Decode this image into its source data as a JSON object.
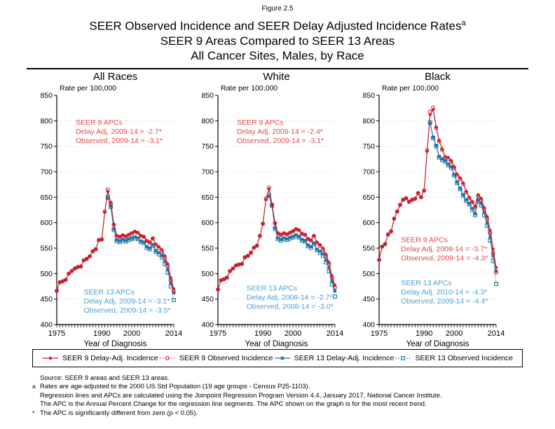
{
  "figure_label": "Figure 2.5",
  "title_line1": "SEER Observed Incidence and SEER Delay Adjusted Incidence Rates",
  "title_superscript": "a",
  "title_line2": "SEER 9 Areas Compared to SEER 13 Areas",
  "title_line3": "All Cancer Sites, Males, by Race",
  "colors": {
    "seer9": "#c8202e",
    "seer9_text": "#e04a4a",
    "seer13": "#2278a8",
    "seer13_text": "#4e9fd4",
    "grid": "#dedede",
    "axis": "#000000"
  },
  "legend": [
    {
      "label": "SEER 9 Delay-Adj. Incidence",
      "marker": "filled-circle",
      "color": "#c8202e",
      "icon": "seer9-delay-adj-marker-icon"
    },
    {
      "label": "SEER 9 Observed Incidence",
      "marker": "open-circle",
      "color": "#c8202e",
      "icon": "seer9-observed-marker-icon"
    },
    {
      "label": "SEER 13 Delay-Adj. Incidence",
      "marker": "filled-square",
      "color": "#2278a8",
      "icon": "seer13-delay-adj-marker-icon"
    },
    {
      "label": "SEER 13 Observed Incidence",
      "marker": "open-square",
      "color": "#2278a8",
      "icon": "seer13-observed-marker-icon"
    }
  ],
  "footnotes": [
    {
      "marker": "",
      "text": "Source: SEER 9 areas and SEER 13 areas."
    },
    {
      "marker": "a",
      "text": "Rates are age-adjusted to the 2000 US Std Population (19 age groups - Census P25-1103)."
    },
    {
      "marker": "",
      "text": "Regression lines and APCs are calculated using the Joinpoint Regression Program Version 4.4, January 2017, National Cancer Institute."
    },
    {
      "marker": "",
      "text": "The APC is the Annual Percent Change for the regression line segments. The APC shown on the graph is for the most recent trend."
    },
    {
      "marker": "*",
      "text": "The APC is significantly different from zero (p < 0.05)."
    }
  ],
  "chart_data": {
    "type": "line",
    "ylabel": "Rate per 100,000",
    "xlabel": "Year of Diagnosis",
    "ylim": [
      400,
      850
    ],
    "xlim": [
      1975,
      2014
    ],
    "yticks": [
      400,
      450,
      500,
      550,
      600,
      650,
      700,
      750,
      800,
      850
    ],
    "xticks": [
      1975,
      1990,
      2000,
      2014
    ],
    "grid": "dashed-horizontal",
    "panels": [
      {
        "title": "All Races",
        "annotations": [
          {
            "color_key": "seer9_text",
            "x_year": 1981.3,
            "top_rate": 792,
            "lines": [
              "SEER 9 APCs",
              "Delay Adj, 2009-14 = -2.7*",
              "Observed, 2009-14 = -3.1*"
            ]
          },
          {
            "color_key": "seer13_text",
            "x_year": 1984.0,
            "top_rate": 459,
            "lines": [
              "SEER 13 APCs",
              "Delay Adj, 2009-14 = -3.1*",
              "Observed, 2009-14 = -3.5*"
            ]
          }
        ],
        "series": [
          {
            "key": "s13o",
            "name": "SEER 13 Observed Incidence",
            "start_year": 1992,
            "values": [
              650,
              631,
              586,
              564,
              562,
              565,
              563,
              566,
              568,
              570,
              568,
              562,
              560,
              551,
              548,
              555,
              543,
              538,
              532,
              519,
              502,
              475,
              448
            ]
          },
          {
            "key": "s13d",
            "name": "SEER 13 Delay-Adj. Incidence",
            "start_year": 1992,
            "values": [
              648,
              633,
              588,
              566,
              564,
              567,
              565,
              568,
              570,
              572,
              570,
              564,
              562,
              553,
              550,
              557,
              545,
              541,
              536,
              524,
              508,
              482,
              462
            ]
          },
          {
            "key": "s9o",
            "name": "SEER 9 Observed Incidence",
            "start_year": 1975,
            "values": [
              466,
              483,
              485,
              488,
              500,
              505,
              510,
              513,
              514,
              526,
              529,
              534,
              544,
              548,
              566,
              567,
              622,
              665,
              638,
              596,
              574,
              572,
              575,
              573,
              576,
              579,
              582,
              580,
              574,
              572,
              564,
              561,
              569,
              556,
              551,
              544,
              532,
              515,
              487,
              465
            ]
          },
          {
            "key": "s9d",
            "name": "SEER 9 Delay-Adj. Incidence",
            "start_year": 1975,
            "values": [
              466,
              483,
              485,
              488,
              500,
              505,
              510,
              513,
              514,
              526,
              529,
              534,
              544,
              548,
              566,
              567,
              620,
              661,
              640,
              597,
              575,
              573,
              576,
              574,
              577,
              580,
              583,
              581,
              575,
              573,
              565,
              562,
              570,
              558,
              553,
              547,
              535,
              519,
              492,
              470
            ]
          }
        ]
      },
      {
        "title": "White",
        "annotations": [
          {
            "color_key": "seer9_text",
            "x_year": 1981.3,
            "top_rate": 792,
            "lines": [
              "SEER 9 APCs",
              "Delay Adj, 2008-14 = -2.4*",
              "Observed, 2009-14 = -3.1*"
            ]
          },
          {
            "color_key": "seer13_text",
            "x_year": 1984.5,
            "top_rate": 467,
            "lines": [
              "SEER 13 APCs",
              "Delay Adj, 2008-14 = -2.7*",
              "Observed, 2008-14 = -3.0*"
            ]
          }
        ],
        "series": [
          {
            "key": "s13o",
            "name": "SEER 13 Observed Incidence",
            "start_year": 1992,
            "values": [
              654,
              633,
              588,
              568,
              565,
              568,
              566,
              569,
              571,
              574,
              571,
              565,
              563,
              554,
              551,
              558,
              546,
              541,
              535,
              522,
              505,
              479,
              455
            ]
          },
          {
            "key": "s13d",
            "name": "SEER 13 Delay-Adj. Incidence",
            "start_year": 1992,
            "values": [
              652,
              635,
              590,
              570,
              567,
              570,
              568,
              571,
              573,
              576,
              573,
              567,
              565,
              556,
              553,
              560,
              548,
              544,
              539,
              527,
              511,
              486,
              466
            ]
          },
          {
            "key": "s9o",
            "name": "SEER 9 Observed Incidence",
            "start_year": 1975,
            "values": [
              469,
              487,
              489,
              492,
              505,
              510,
              516,
              518,
              519,
              532,
              535,
              541,
              551,
              555,
              574,
              598,
              647,
              669,
              635,
              599,
              579,
              576,
              579,
              577,
              580,
              583,
              587,
              585,
              578,
              576,
              568,
              565,
              574,
              560,
              555,
              547,
              535,
              519,
              492,
              473
            ]
          },
          {
            "key": "s9d",
            "name": "SEER 9 Delay-Adj. Incidence",
            "start_year": 1975,
            "values": [
              469,
              487,
              489,
              492,
              505,
              510,
              516,
              518,
              519,
              532,
              535,
              541,
              551,
              555,
              574,
              598,
              645,
              666,
              637,
              600,
              580,
              577,
              580,
              578,
              581,
              584,
              588,
              586,
              579,
              577,
              569,
              566,
              575,
              562,
              557,
              550,
              538,
              522,
              496,
              477
            ]
          }
        ]
      },
      {
        "title": "Black",
        "annotations": [
          {
            "color_key": "seer9_text",
            "x_year": 1982.3,
            "top_rate": 562,
            "lines": [
              "SEER 9 APCs",
              "Delay Adj, 2008-14 = -3.7*",
              "Observed, 2009-14 = -4.3*"
            ]
          },
          {
            "color_key": "seer13_text",
            "x_year": 1982.3,
            "top_rate": 477,
            "lines": [
              "SEER 13 APCs",
              "Delay Adj, 2010-14 = -4.3*",
              "Observed, 2009-14 = -4.4*"
            ]
          }
        ],
        "series": [
          {
            "key": "s13o",
            "name": "SEER 13 Observed Incidence",
            "start_year": 1992,
            "values": [
              797,
              766,
              750,
              728,
              723,
              720,
              713,
              708,
              693,
              678,
              666,
              653,
              643,
              636,
              625,
              615,
              642,
              634,
              615,
              594,
              565,
              525,
              480
            ]
          },
          {
            "key": "s13d",
            "name": "SEER 13 Delay-Adj. Incidence",
            "start_year": 1992,
            "values": [
              795,
              768,
              752,
              730,
              725,
              722,
              715,
              710,
              695,
              680,
              668,
              655,
              645,
              638,
              628,
              618,
              645,
              638,
              620,
              600,
              572,
              535,
              505
            ]
          },
          {
            "key": "s9o",
            "name": "SEER 9 Observed Incidence",
            "start_year": 1975,
            "values": [
              527,
              553,
              558,
              577,
              583,
              608,
              622,
              635,
              645,
              648,
              641,
              645,
              647,
              658,
              650,
              663,
              742,
              818,
              826,
              786,
              760,
              743,
              728,
              726,
              720,
              708,
              693,
              686,
              676,
              660,
              648,
              640,
              630,
              653,
              645,
              627,
              608,
              580,
              540,
              502
            ]
          },
          {
            "key": "s9d",
            "name": "SEER 9 Delay-Adj. Incidence",
            "start_year": 1975,
            "values": [
              527,
              553,
              558,
              577,
              583,
              608,
              622,
              635,
              645,
              648,
              641,
              645,
              647,
              658,
              650,
              663,
              740,
              812,
              822,
              788,
              762,
              745,
              730,
              728,
              722,
              710,
              695,
              688,
              678,
              662,
              650,
              642,
              632,
              655,
              648,
              630,
              612,
              585,
              548,
              512
            ]
          }
        ]
      }
    ]
  }
}
